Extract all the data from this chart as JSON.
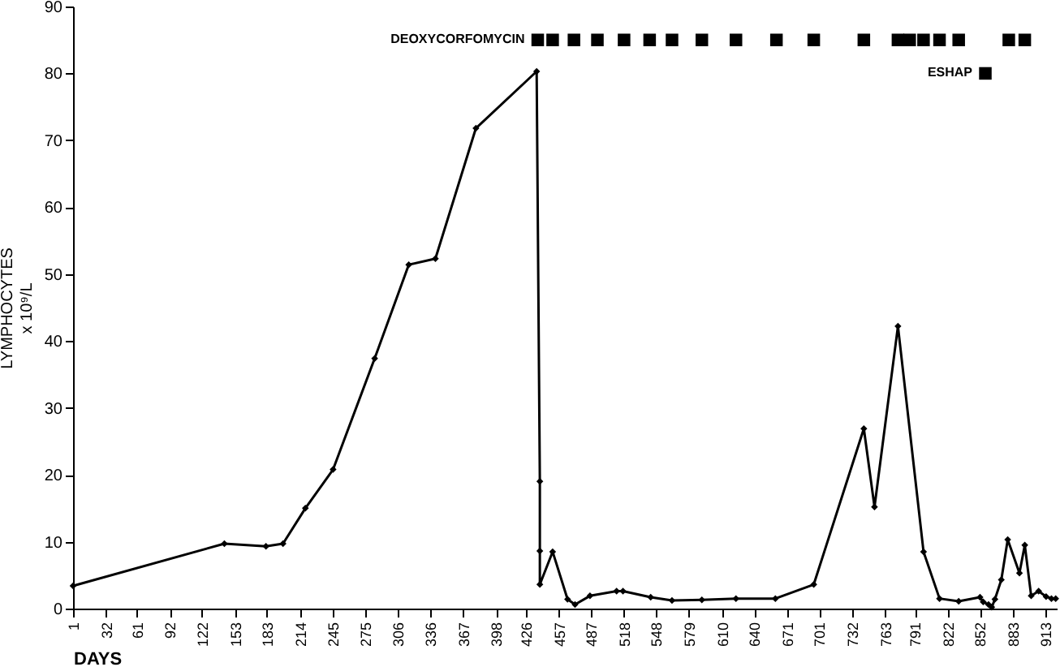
{
  "chart_data": {
    "type": "line",
    "xlabel": "DAYS",
    "ylabel": "LYMPHOCYTES\nx 10⁹/L",
    "xlim": [
      1,
      924
    ],
    "xticks": [
      1,
      32,
      61,
      92,
      122,
      153,
      183,
      214,
      245,
      275,
      306,
      336,
      367,
      398,
      426,
      457,
      487,
      518,
      548,
      579,
      610,
      640,
      671,
      701,
      732,
      763,
      791,
      822,
      852,
      883,
      913
    ],
    "ylim": [
      0,
      90
    ],
    "yticks": [
      0,
      10,
      20,
      30,
      40,
      50,
      60,
      70,
      80,
      90
    ],
    "grid": false,
    "marker": "diamond",
    "series": [
      {
        "color": "#000000",
        "x": [
          1,
          143,
          182,
          198,
          219,
          245,
          284,
          316,
          341,
          379,
          436,
          439,
          439,
          439,
          451,
          465,
          472,
          486,
          511,
          517,
          543,
          563,
          591,
          623,
          660,
          696,
          743,
          753,
          775,
          799,
          814,
          832,
          852,
          855,
          860,
          863,
          866,
          872,
          878,
          889,
          894,
          900,
          907,
          914,
          919,
          923
        ],
        "values": [
          3.4,
          9.7,
          9.3,
          9.7,
          15,
          20.8,
          37.4,
          51.4,
          52.3,
          71.8,
          80.3,
          19,
          8.6,
          3.6,
          8.5,
          1.4,
          0.6,
          1.9,
          2.6,
          2.6,
          1.7,
          1.2,
          1.3,
          1.5,
          1.5,
          3.6,
          26.9,
          15.2,
          42.2,
          8.5,
          1.5,
          1.1,
          1.7,
          1,
          0.6,
          0.2,
          1.4,
          4.3,
          10.3,
          5.3,
          9.5,
          1.9,
          2.6,
          1.8,
          1.5,
          1.5
        ]
      },
      {
        "name": "DEOXYCORFOMYCIN",
        "type": "scatter",
        "marker": "square",
        "color": "#000000",
        "x": [
          437,
          451,
          471,
          493,
          518,
          542,
          563,
          591,
          623,
          661,
          696,
          743,
          775,
          786,
          799,
          814,
          832,
          879,
          894
        ],
        "values": [
          85,
          85,
          85,
          85,
          85,
          85,
          85,
          85,
          85,
          85,
          85,
          85,
          85,
          85,
          85,
          85,
          85,
          85,
          85
        ]
      },
      {
        "name": "ESHAP",
        "type": "scatter",
        "marker": "square",
        "color": "#000000",
        "x": [
          857
        ],
        "values": [
          80
        ]
      }
    ]
  }
}
